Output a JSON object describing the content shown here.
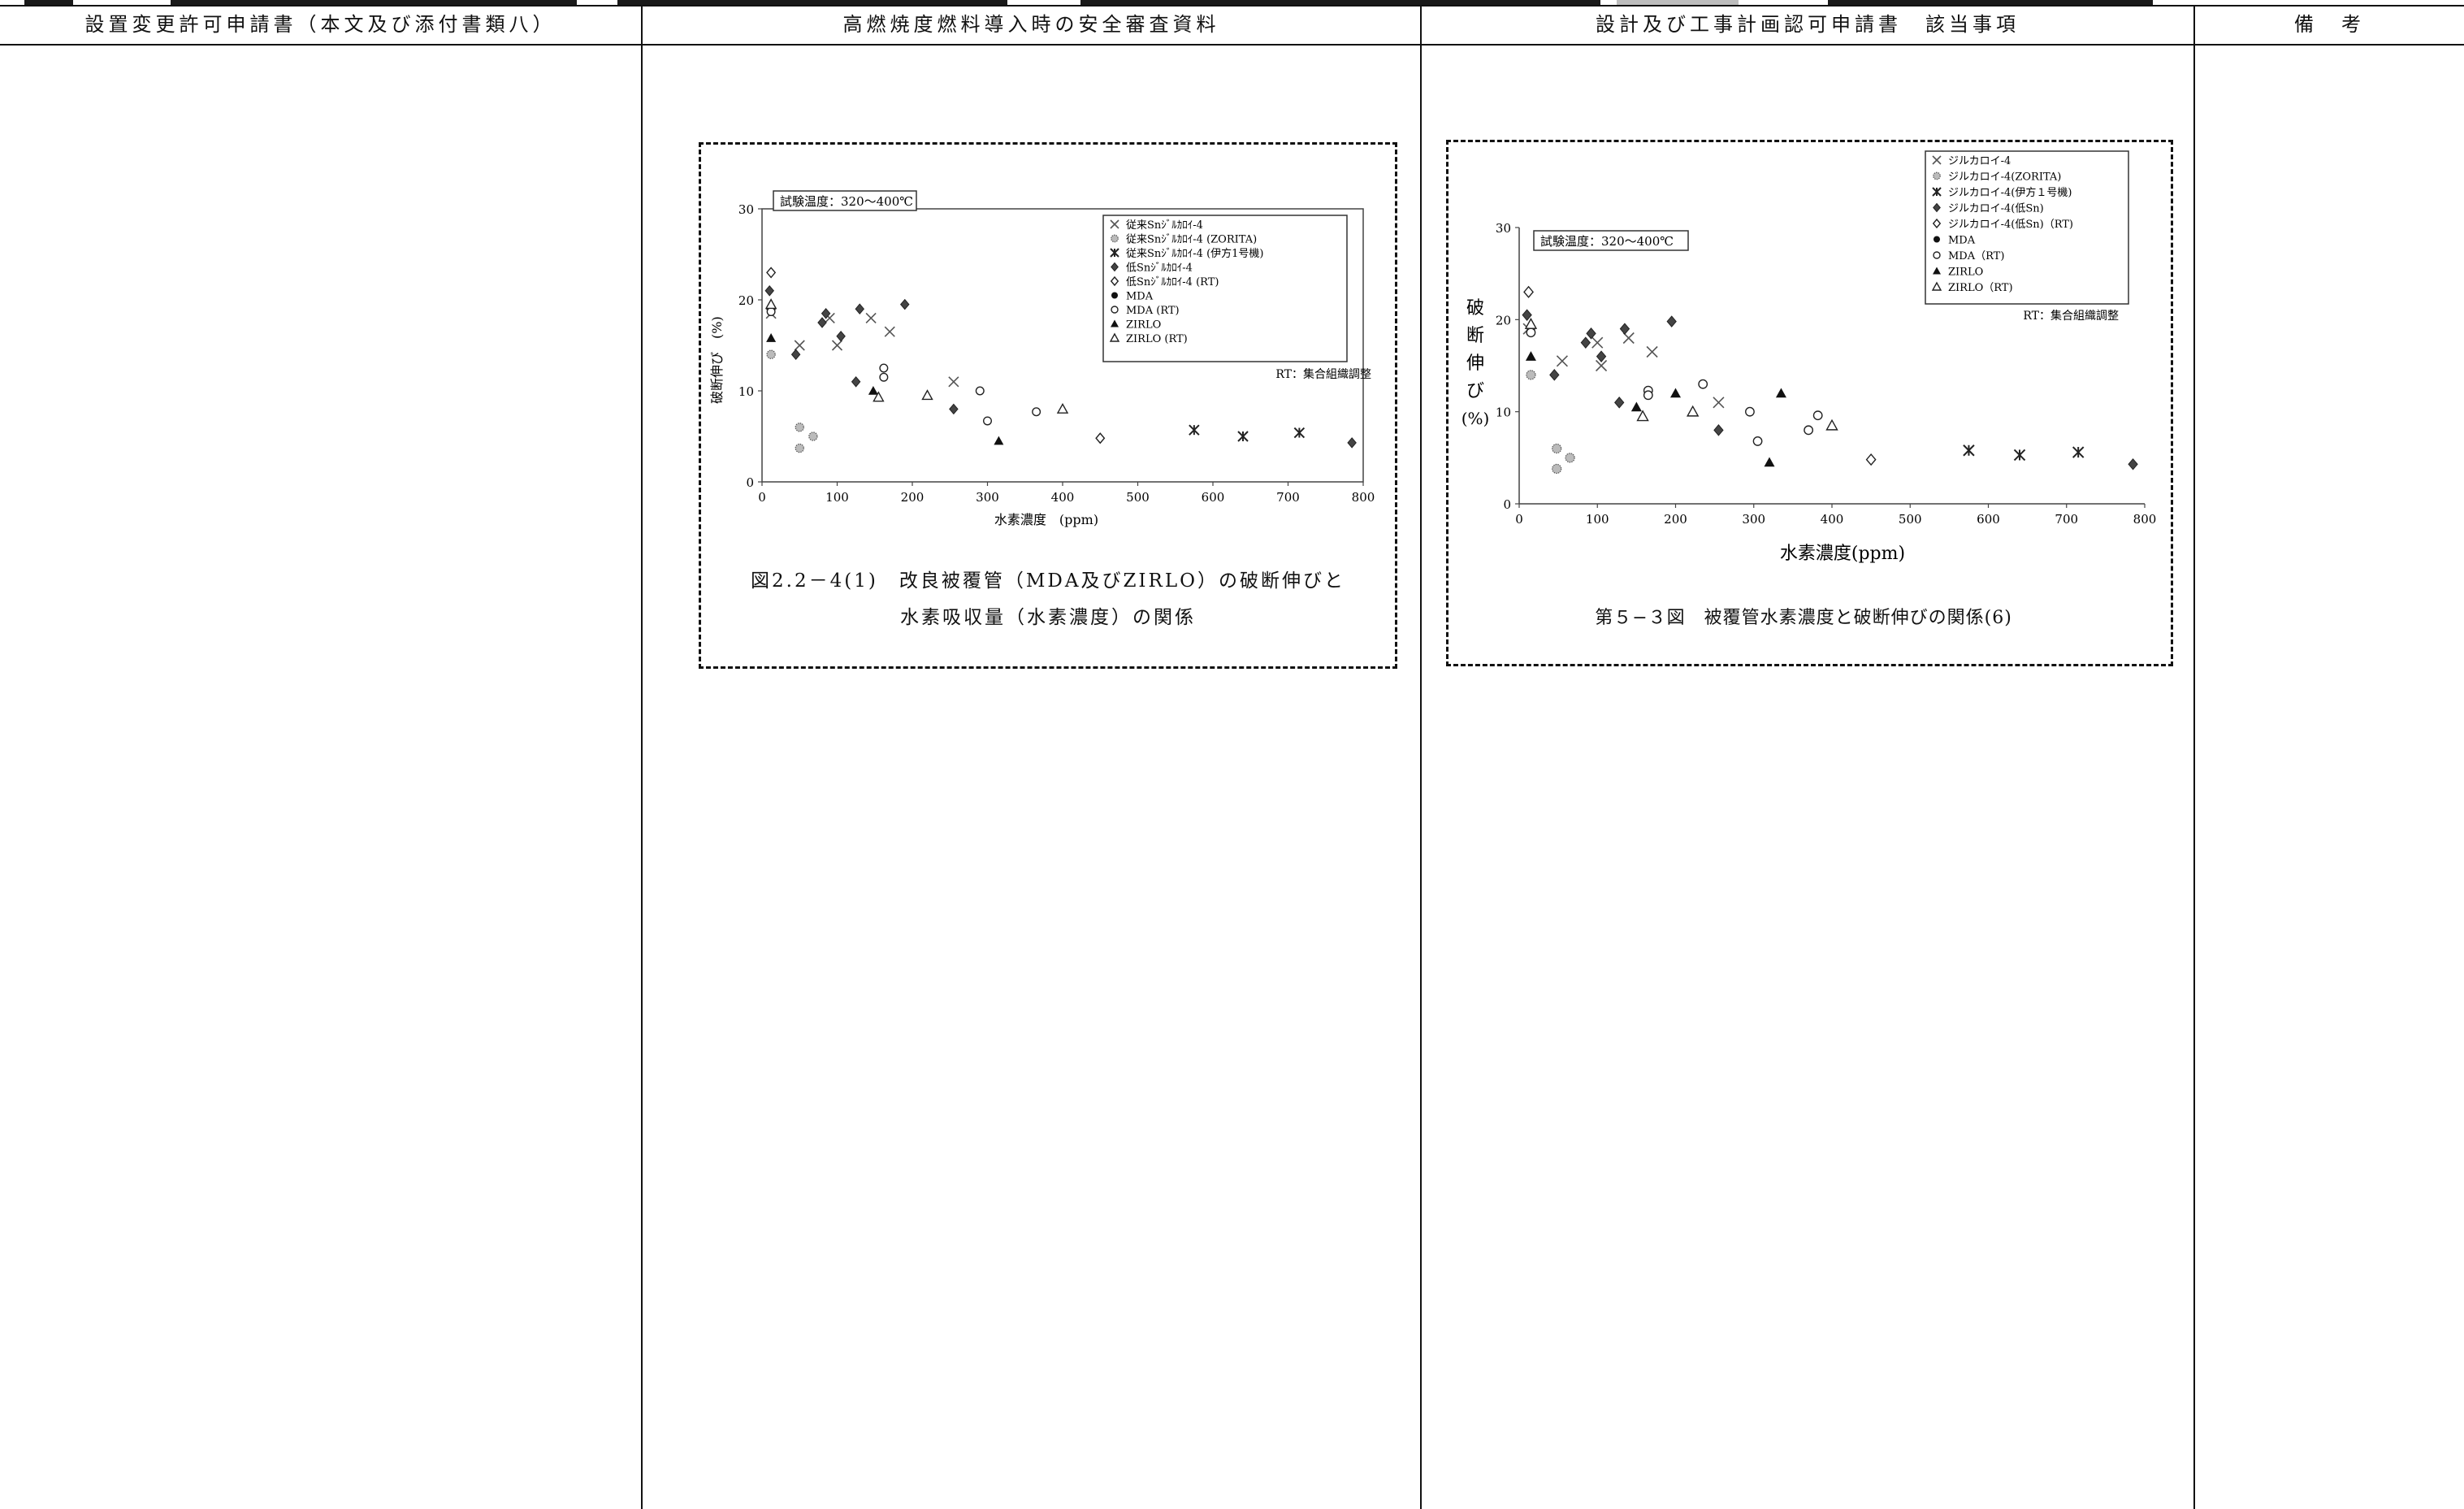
{
  "columns": {
    "col1": "設置変更許可申請書（本文及び添付書類八）",
    "col2": "高燃焼度燃料導入時の安全審査資料",
    "col3": "設計及び工事計画認可申請書　該当事項",
    "col4": "備　考"
  },
  "figure_left": {
    "caption_line1": "図2.2－4(1)　改良被覆管（MDA及びZIRLO）の破断伸びと",
    "caption_line2": "水素吸収量（水素濃度）の関係",
    "inset_label": "試験温度：320～400℃",
    "note": "RT：集合組織調整",
    "ylabel": "破断伸び　(%)",
    "xlabel": "水素濃度　(ppm)",
    "legend": [
      "従来Snｼﾞﾙｶﾛｲ-4",
      "従来Snｼﾞﾙｶﾛｲ-4 (ZORITA)",
      "従来Snｼﾞﾙｶﾛｲ-4 (伊方1号機)",
      "低Snｼﾞﾙｶﾛｲ-4",
      "低Snｼﾞﾙｶﾛｲ-4 (RT)",
      "MDA",
      "MDA (RT)",
      "ZIRLO",
      "ZIRLO (RT)"
    ]
  },
  "figure_right": {
    "caption": "第５−３図　被覆管水素濃度と破断伸びの関係(6)",
    "inset_label": "試験温度：320～400℃",
    "note": "RT：集合組織調整",
    "ylabel_chars": [
      "破",
      "断",
      "伸",
      "び",
      "(%)"
    ],
    "xlabel": "水素濃度(ppm)",
    "legend": [
      "ジルカロイ-4",
      "ジルカロイ-4(ZORITA)",
      "ジルカロイ-4(伊方１号機)",
      "ジルカロイ-4(低Sn)",
      "ジルカロイ-4(低Sn)（RT)",
      "MDA",
      "MDA（RT)",
      "ZIRLO",
      "ZIRLO（RT)"
    ]
  },
  "chart_data": [
    {
      "type": "scatter",
      "xlim": [
        0,
        800
      ],
      "ylim": [
        0,
        30
      ],
      "xticks": [
        0,
        100,
        200,
        300,
        400,
        500,
        600,
        700,
        800
      ],
      "yticks": [
        0,
        10,
        20,
        30
      ],
      "legend_position": "top-right",
      "grid": false,
      "series": [
        {
          "name": "従来Snｼﾞﾙｶﾛｲ-4",
          "marker": "x",
          "points": [
            [
              12,
              18.5
            ],
            [
              50,
              15
            ],
            [
              100,
              15
            ],
            [
              90,
              18
            ],
            [
              145,
              18
            ],
            [
              170,
              16.5
            ],
            [
              255,
              11
            ]
          ]
        },
        {
          "name": "従来Snｼﾞﾙｶﾛｲ-4 (ZORITA)",
          "marker": "dotted-circle",
          "points": [
            [
              12,
              14
            ],
            [
              50,
              6
            ],
            [
              50,
              3.7
            ],
            [
              68,
              5
            ]
          ]
        },
        {
          "name": "従来Snｼﾞﾙｶﾛｲ-4 (伊方1号機)",
          "marker": "star",
          "points": [
            [
              575,
              5.7
            ],
            [
              640,
              5
            ],
            [
              715,
              5.4
            ]
          ]
        },
        {
          "name": "低Snｼﾞﾙｶﾛｲ-4",
          "marker": "filled-diamond",
          "points": [
            [
              10,
              21
            ],
            [
              45,
              14
            ],
            [
              80,
              17.5
            ],
            [
              85,
              18.5
            ],
            [
              105,
              16
            ],
            [
              125,
              11
            ],
            [
              130,
              19
            ],
            [
              190,
              19.5
            ],
            [
              255,
              8
            ],
            [
              785,
              4.3
            ]
          ]
        },
        {
          "name": "低Snｼﾞﾙｶﾛｲ-4 (RT)",
          "marker": "open-diamond",
          "points": [
            [
              12,
              23
            ],
            [
              450,
              4.8
            ]
          ]
        },
        {
          "name": "MDA",
          "marker": "filled-circle",
          "points": [
            [
              12,
              19
            ]
          ]
        },
        {
          "name": "MDA (RT)",
          "marker": "open-circle",
          "points": [
            [
              12,
              18.7
            ],
            [
              162,
              12.5
            ],
            [
              162,
              11.5
            ],
            [
              290,
              10
            ],
            [
              300,
              6.7
            ],
            [
              365,
              7.7
            ]
          ]
        },
        {
          "name": "ZIRLO",
          "marker": "filled-triangle",
          "points": [
            [
              12,
              15.8
            ],
            [
              148,
              10
            ],
            [
              315,
              4.5
            ]
          ]
        },
        {
          "name": "ZIRLO (RT)",
          "marker": "open-triangle",
          "points": [
            [
              12,
              19.5
            ],
            [
              155,
              9.3
            ],
            [
              220,
              9.5
            ],
            [
              400,
              8
            ]
          ]
        }
      ]
    },
    {
      "type": "scatter",
      "xlim": [
        0,
        800
      ],
      "ylim": [
        0,
        30
      ],
      "xticks": [
        0,
        100,
        200,
        300,
        400,
        500,
        600,
        700,
        800
      ],
      "yticks": [
        0,
        10,
        20,
        30
      ],
      "legend_position": "top-right",
      "grid": false,
      "series": [
        {
          "name": "ジルカロイ-4",
          "marker": "x",
          "points": [
            [
              12,
              19
            ],
            [
              55,
              15.5
            ],
            [
              100,
              17.5
            ],
            [
              105,
              15
            ],
            [
              140,
              18
            ],
            [
              170,
              16.5
            ],
            [
              255,
              11
            ]
          ]
        },
        {
          "name": "ジルカロイ-4(ZORITA)",
          "marker": "dotted-circle",
          "points": [
            [
              15,
              14
            ],
            [
              48,
              6
            ],
            [
              48,
              3.8
            ],
            [
              65,
              5
            ]
          ]
        },
        {
          "name": "ジルカロイ-4(伊方１号機)",
          "marker": "star",
          "points": [
            [
              575,
              5.8
            ],
            [
              640,
              5.3
            ],
            [
              715,
              5.6
            ]
          ]
        },
        {
          "name": "ジルカロイ-4(低Sn)",
          "marker": "filled-diamond",
          "points": [
            [
              10,
              20.5
            ],
            [
              45,
              14
            ],
            [
              85,
              17.5
            ],
            [
              92,
              18.5
            ],
            [
              105,
              16
            ],
            [
              128,
              11
            ],
            [
              135,
              19
            ],
            [
              195,
              19.8
            ],
            [
              255,
              8
            ],
            [
              785,
              4.3
            ]
          ]
        },
        {
          "name": "ジルカロイ-4(低Sn)（RT)",
          "marker": "open-diamond",
          "points": [
            [
              12,
              23
            ],
            [
              450,
              4.8
            ]
          ]
        },
        {
          "name": "MDA",
          "marker": "filled-circle",
          "points": [
            [
              15,
              19
            ]
          ]
        },
        {
          "name": "MDA（RT)",
          "marker": "open-circle",
          "points": [
            [
              15,
              18.6
            ],
            [
              165,
              12.3
            ],
            [
              165,
              11.8
            ],
            [
              235,
              13
            ],
            [
              295,
              10
            ],
            [
              305,
              6.8
            ],
            [
              370,
              8
            ],
            [
              382,
              9.6
            ]
          ]
        },
        {
          "name": "ZIRLO",
          "marker": "filled-triangle",
          "points": [
            [
              15,
              16
            ],
            [
              150,
              10.5
            ],
            [
              200,
              12
            ],
            [
              320,
              4.5
            ],
            [
              335,
              12
            ]
          ]
        },
        {
          "name": "ZIRLO（RT)",
          "marker": "open-triangle",
          "points": [
            [
              15,
              19.5
            ],
            [
              158,
              9.5
            ],
            [
              222,
              10
            ],
            [
              400,
              8.5
            ]
          ]
        }
      ]
    }
  ]
}
